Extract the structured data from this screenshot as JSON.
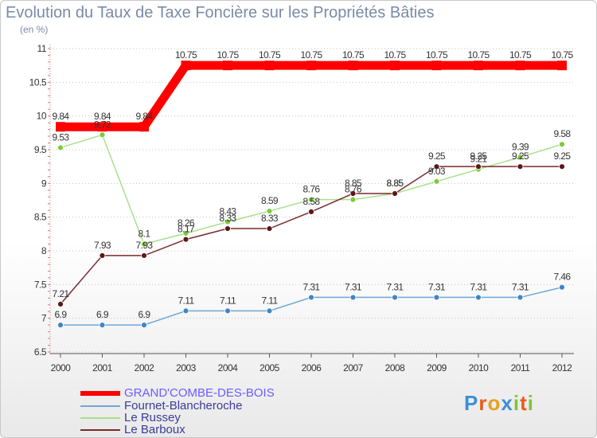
{
  "chart_data": {
    "type": "line",
    "title": "Evolution du Taux de Taxe Foncière sur les Propriétés Bâties",
    "unit_label": "(en %)",
    "xlabel": "",
    "ylabel": "",
    "ylim": [
      6.5,
      11
    ],
    "y_ticks": [
      "6.5",
      "7",
      "7.5",
      "8",
      "8.5",
      "9",
      "9.5",
      "10",
      "10.5",
      "11"
    ],
    "categories": [
      "2000",
      "2001",
      "2002",
      "2003",
      "2004",
      "2005",
      "2006",
      "2007",
      "2008",
      "2009",
      "2010",
      "2011",
      "2012"
    ],
    "series": [
      {
        "name": "GRAND'COMBE-DES-BOIS",
        "color": "#ff0000",
        "values": [
          9.84,
          9.84,
          9.84,
          10.75,
          10.75,
          10.75,
          10.75,
          10.75,
          10.75,
          10.75,
          10.75,
          10.75,
          10.75
        ],
        "labels": [
          "9.84",
          "9.84",
          "9.84",
          "10.75",
          "10.75",
          "10.75",
          "10.75",
          "10.75",
          "10.75",
          "10.75",
          "10.75",
          "10.75",
          "10.75"
        ]
      },
      {
        "name": "Fournet-Blancheroche",
        "color": "#6fa8d8",
        "marker_color": "#3f86c8",
        "values": [
          6.9,
          6.9,
          6.9,
          7.11,
          7.11,
          7.11,
          7.31,
          7.31,
          7.31,
          7.31,
          7.31,
          7.31,
          7.46
        ],
        "labels": [
          "6.9",
          "6.9",
          "6.9",
          "7.11",
          "7.11",
          "7.11",
          "7.31",
          "7.31",
          "7.31",
          "7.31",
          "7.31",
          "7.31",
          "7.46"
        ]
      },
      {
        "name": "Le Russey",
        "color": "#a8e08a",
        "marker_color": "#7ccc3c",
        "values": [
          9.53,
          9.72,
          8.1,
          8.26,
          8.43,
          8.59,
          8.76,
          8.76,
          8.85,
          9.03,
          9.21,
          9.39,
          9.58
        ],
        "labels": [
          "9.53",
          "9.72",
          "8.1",
          "8.26",
          "8.43",
          "8.59",
          "8.76",
          "8.76",
          "8.85",
          "9.03",
          "9.21",
          "9.39",
          "9.58"
        ]
      },
      {
        "name": "Le Barboux",
        "color": "#7a2a2a",
        "marker_color": "#5a1818",
        "values": [
          7.21,
          7.93,
          7.93,
          8.17,
          8.33,
          8.33,
          8.58,
          8.85,
          8.85,
          9.25,
          9.25,
          9.25,
          9.25
        ],
        "labels": [
          "7.21",
          "7.93",
          "7.93",
          "8.17",
          "8.33",
          "8.33",
          "8.58",
          "8.85",
          "8.85",
          "9.25",
          "9.25",
          "9.25",
          "9.25"
        ]
      }
    ],
    "legend_position": "bottom-left"
  },
  "logo": {
    "letters": [
      "P",
      "r",
      "o",
      "x",
      "i",
      "t",
      "i"
    ],
    "colors": [
      "#3a8fd8",
      "#e85c1c",
      "#e8a020",
      "#3a8fd8",
      "#7cc43c",
      "#e85c1c",
      "#7cc43c"
    ]
  }
}
